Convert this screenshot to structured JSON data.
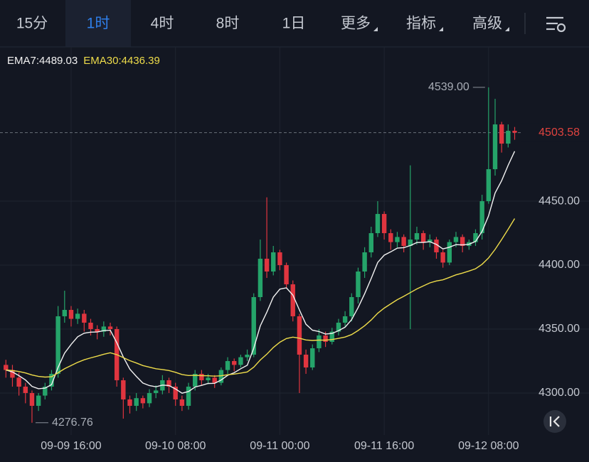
{
  "toolbar": {
    "tabs": [
      {
        "label": "15分",
        "dropdown": false
      },
      {
        "label": "1时",
        "dropdown": false
      },
      {
        "label": "4时",
        "dropdown": false
      },
      {
        "label": "8时",
        "dropdown": false
      },
      {
        "label": "1日",
        "dropdown": false
      },
      {
        "label": "更多",
        "dropdown": true
      },
      {
        "label": "指标",
        "dropdown": true
      },
      {
        "label": "高级",
        "dropdown": true
      }
    ],
    "active_tab": 1
  },
  "chart_data": {
    "type": "candlestick",
    "categories": [
      null,
      null,
      null,
      null,
      null,
      null,
      null,
      null,
      null,
      null,
      "09-09 16:00",
      null,
      null,
      null,
      null,
      null,
      null,
      null,
      null,
      null,
      null,
      null,
      null,
      null,
      null,
      null,
      "09-10 08:00",
      null,
      null,
      null,
      null,
      null,
      null,
      null,
      null,
      null,
      null,
      null,
      null,
      null,
      null,
      null,
      "09-11 00:00",
      null,
      null,
      null,
      null,
      null,
      null,
      null,
      null,
      null,
      null,
      null,
      null,
      null,
      null,
      null,
      "09-11 16:00",
      null,
      null,
      null,
      null,
      null,
      null,
      null,
      null,
      null,
      null,
      null,
      null,
      null,
      null,
      null,
      "09-12 08:00",
      null,
      null,
      null,
      null
    ],
    "open": [
      4322,
      4318,
      4312,
      4305,
      4300,
      4290,
      4298,
      4305,
      4315,
      4360,
      4365,
      4358,
      4362,
      4355,
      4350,
      4348,
      4352,
      4350,
      4310,
      4295,
      4290,
      4296,
      4292,
      4300,
      4302,
      4310,
      4305,
      4295,
      4290,
      4305,
      4315,
      4310,
      4312,
      4308,
      4318,
      4325,
      4322,
      4328,
      4330,
      4375,
      4405,
      4395,
      4410,
      4400,
      4385,
      4360,
      4330,
      4320,
      4335,
      4345,
      4340,
      4348,
      4355,
      4360,
      4375,
      4395,
      4410,
      4425,
      4440,
      4425,
      4418,
      4422,
      4415,
      4420,
      4425,
      4418,
      4420,
      4410,
      4402,
      4418,
      4422,
      4415,
      4418,
      4425,
      4450,
      4475,
      4510,
      4495,
      4505
    ],
    "high": [
      4326,
      4322,
      4316,
      4308,
      4302,
      4300,
      4308,
      4318,
      4368,
      4380,
      4368,
      4366,
      4365,
      4358,
      4353,
      4356,
      4355,
      4352,
      4312,
      4298,
      4300,
      4298,
      4303,
      4306,
      4314,
      4312,
      4308,
      4298,
      4308,
      4318,
      4318,
      4315,
      4314,
      4320,
      4328,
      4327,
      4330,
      4334,
      4378,
      4420,
      4453,
      4415,
      4412,
      4402,
      4388,
      4362,
      4334,
      4338,
      4350,
      4348,
      4351,
      4358,
      4364,
      4378,
      4398,
      4414,
      4430,
      4450,
      4442,
      4428,
      4426,
      4424,
      4478,
      4430,
      4427,
      4424,
      4422,
      4412,
      4420,
      4426,
      4424,
      4420,
      4428,
      4455,
      4539,
      4530,
      4512,
      4510,
      4508
    ],
    "low": [
      4312,
      4305,
      4298,
      4292,
      4276.76,
      4286,
      4295,
      4302,
      4312,
      4355,
      4352,
      4354,
      4348,
      4345,
      4342,
      4344,
      4345,
      4305,
      4280,
      4284,
      4286,
      4288,
      4289,
      4296,
      4299,
      4300,
      4290,
      4286,
      4287,
      4302,
      4306,
      4307,
      4304,
      4306,
      4315,
      4317,
      4320,
      4325,
      4328,
      4372,
      4390,
      4392,
      4396,
      4382,
      4356,
      4300,
      4315,
      4318,
      4332,
      4336,
      4338,
      4345,
      4352,
      4356,
      4370,
      4390,
      4406,
      4422,
      4420,
      4412,
      4414,
      4410,
      4350,
      4416,
      4412,
      4414,
      4405,
      4398,
      4400,
      4414,
      4410,
      4412,
      4415,
      4420,
      4448,
      4470,
      4488,
      4492,
      4498
    ],
    "close": [
      4318,
      4312,
      4305,
      4300,
      4290,
      4298,
      4305,
      4315,
      4360,
      4365,
      4358,
      4362,
      4355,
      4350,
      4348,
      4352,
      4350,
      4310,
      4295,
      4290,
      4296,
      4292,
      4300,
      4302,
      4310,
      4305,
      4295,
      4290,
      4305,
      4315,
      4310,
      4312,
      4308,
      4318,
      4325,
      4322,
      4328,
      4330,
      4375,
      4405,
      4395,
      4410,
      4400,
      4385,
      4360,
      4330,
      4320,
      4335,
      4345,
      4340,
      4348,
      4355,
      4360,
      4375,
      4395,
      4410,
      4425,
      4440,
      4425,
      4418,
      4422,
      4415,
      4420,
      4425,
      4418,
      4420,
      4410,
      4402,
      4418,
      4422,
      4415,
      4418,
      4425,
      4450,
      4475,
      4510,
      4495,
      4505,
      4503.58
    ],
    "up_color": "#25a46a",
    "down_color": "#e0353f",
    "series": [
      {
        "name": "EMA7:4489.03",
        "color": "#f2f2f2",
        "values": [
          4318,
          4316.5,
          4313.6,
          4310.2,
          4305.2,
          4303.4,
          4303.8,
          4306.6,
          4320,
          4331.2,
          4338,
          4344,
          4346.8,
          4347.6,
          4347.7,
          4348.8,
          4349.1,
          4339.3,
          4328.2,
          4318.7,
          4313,
          4307.8,
          4305.8,
          4304.9,
          4306.2,
          4305.9,
          4303.2,
          4299.9,
          4301.2,
          4304.7,
          4306,
          4307.5,
          4307.6,
          4310.2,
          4313.9,
          4315.9,
          4319,
          4321.7,
          4335,
          4352.5,
          4363.2,
          4375,
          4381.2,
          4382.2,
          4376.6,
          4365,
          4353.8,
          4349.1,
          4348.1,
          4346.1,
          4346.6,
          4348.7,
          4351.5,
          4357.4,
          4366.8,
          4377.6,
          4389.5,
          4402.1,
          4407.8,
          4410.4,
          4413.3,
          4413.7,
          4415.3,
          4417.7,
          4417.8,
          4418.3,
          4416.2,
          4412.7,
          4414,
          4416,
          4415.8,
          4416.3,
          4418.5,
          4426.4,
          4438.5,
          4456.4,
          4466,
          4478,
          4489.03
        ]
      },
      {
        "name": "EMA30:4436.39",
        "color": "#eedc4a",
        "values": [
          4318,
          4317.6,
          4316.8,
          4315.7,
          4314.1,
          4313,
          4312.5,
          4312.7,
          4315.8,
          4319,
          4321.5,
          4324,
          4326,
          4327.5,
          4328.8,
          4330.3,
          4331.5,
          4330,
          4327.7,
          4325.3,
          4323.5,
          4321.5,
          4320.2,
          4319,
          4318.4,
          4317.6,
          4316.2,
          4314.5,
          4313.7,
          4313.8,
          4313.6,
          4313.5,
          4313.2,
          4313.5,
          4314.3,
          4314.8,
          4315.6,
          4316.5,
          4320.2,
          4325.8,
          4330.4,
          4335.6,
          4339.7,
          4342.6,
          4343.7,
          4342.9,
          4341.5,
          4341.1,
          4341.4,
          4341.3,
          4341.8,
          4342.7,
          4343.8,
          4345.7,
          4348.9,
          4352.6,
          4357.1,
          4362.4,
          4366.4,
          4369.7,
          4373,
          4375.6,
          4378.5,
          4381.4,
          4383.8,
          4386.1,
          4387.6,
          4388.5,
          4390.4,
          4392.4,
          4393.8,
          4395.4,
          4397.2,
          4400.7,
          4405.6,
          4412.3,
          4420,
          4428,
          4436.39
        ]
      }
    ],
    "ylim": [
      4267.2,
      4570.6
    ],
    "yticks": [
      {
        "value": 4300,
        "label": "4300.00"
      },
      {
        "value": 4350,
        "label": "4350.00"
      },
      {
        "value": 4400,
        "label": "4400.00"
      },
      {
        "value": 4450,
        "label": "4450.00"
      }
    ],
    "last_price": 4503.58,
    "high_marker": {
      "value": 4539,
      "label": "4539.00"
    },
    "low_marker": 4276.76,
    "grid": true
  }
}
